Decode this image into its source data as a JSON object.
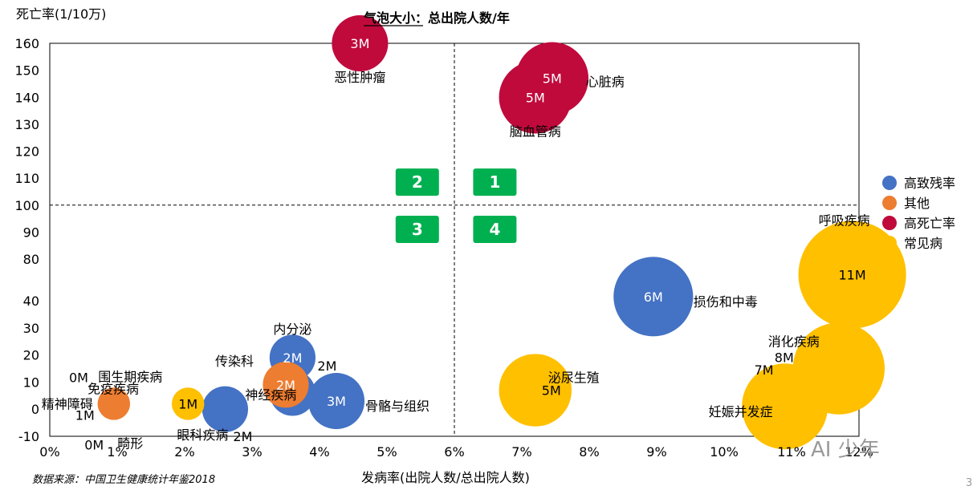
{
  "chart_data": {
    "type": "bubble",
    "title": "气泡大小：总出院人数/年",
    "ylabel": "死亡率(1/10万)",
    "xlabel": "发病率(出院人数/总出院人数)",
    "x_ticks": [
      "0%",
      "1%",
      "2%",
      "3%",
      "4%",
      "5%",
      "6%",
      "7%",
      "8%",
      "9%",
      "10%",
      "11%",
      "12%"
    ],
    "y_ticks": [
      "-10",
      "0",
      "10",
      "20",
      "30",
      "40",
      "80",
      "90",
      "100",
      "110",
      "120",
      "130",
      "140",
      "150",
      "160"
    ],
    "xlim": [
      0,
      12
    ],
    "ylim": [
      -10,
      160
    ],
    "y_axis_break": [
      40,
      80
    ],
    "divider_x": 6,
    "divider_y": 100,
    "legend_position": "right",
    "groups": [
      {
        "name": "高致残率",
        "color": "#4472C4"
      },
      {
        "name": "其他",
        "color": "#ED7D31"
      },
      {
        "name": "高死亡率",
        "color": "#C00A3C"
      },
      {
        "name": "常见病",
        "color": "#FFC000"
      }
    ],
    "bubbles": [
      {
        "name": "恶性肿瘤",
        "x": 4.6,
        "y": 160,
        "size": 3,
        "size_label": "3M",
        "group": "高死亡率"
      },
      {
        "name": "心脏病",
        "x": 7.45,
        "y": 147,
        "size": 5,
        "size_label": "5M",
        "group": "高死亡率"
      },
      {
        "name": "脑血管病",
        "x": 7.2,
        "y": 140,
        "size": 5,
        "size_label": "5M",
        "group": "高死亡率"
      },
      {
        "name": "损伤和中毒",
        "x": 8.95,
        "y": 44,
        "size": 6,
        "size_label": "6M",
        "group": "高致残率"
      },
      {
        "name": "呼吸疾病",
        "x": 11.9,
        "y": 65,
        "size": 11,
        "size_label": "11M",
        "group": "常见病"
      },
      {
        "name": "消化疾病",
        "x": 11.7,
        "y": 15,
        "size": 8,
        "size_label": "8M",
        "group": "常见病"
      },
      {
        "name": "妊娠并发症",
        "x": 10.9,
        "y": 1,
        "size": 7,
        "size_label": "7M",
        "group": "常见病"
      },
      {
        "name": "泌尿生殖",
        "x": 7.2,
        "y": 7,
        "size": 5,
        "size_label": "5M",
        "group": "常见病"
      },
      {
        "name": "内分泌",
        "x": 3.6,
        "y": 19,
        "size": 2,
        "size_label": "2M",
        "group": "高致残率"
      },
      {
        "name": "神经疾病",
        "x": 3.6,
        "y": 6,
        "size": 2,
        "size_label": "2M",
        "group": "高致残率"
      },
      {
        "name": "骨骼与组织",
        "x": 4.25,
        "y": 3,
        "size": 3,
        "size_label": "3M",
        "group": "高致残率"
      },
      {
        "name": "传染科",
        "x": 3.5,
        "y": 9,
        "size": 2,
        "size_label": "2M",
        "group": "其他"
      },
      {
        "name": "眼科疾病",
        "x": 2.6,
        "y": 0,
        "size": 2,
        "size_label": "2M",
        "group": "高致残率"
      },
      {
        "name": "围生期疾病",
        "x": 2.05,
        "y": 2,
        "size": 1,
        "size_label": "1M",
        "group": "常见病"
      },
      {
        "name": "免疫疾病",
        "x": 1.0,
        "y": 4,
        "size": 0,
        "size_label": "0M",
        "group": "其他"
      },
      {
        "name": "精神障碍",
        "x": 0.95,
        "y": 2,
        "size": 1,
        "size_label": "1M",
        "group": "其他"
      },
      {
        "name": "畸形",
        "x": 1.05,
        "y": -3,
        "size": 0,
        "size_label": "0M",
        "group": "其他"
      }
    ],
    "quadrants": [
      {
        "label": "1",
        "x": 6.6,
        "y": 108.5
      },
      {
        "label": "2",
        "x": 5.45,
        "y": 108.5
      },
      {
        "label": "3",
        "x": 5.45,
        "y": 91
      },
      {
        "label": "4",
        "x": 6.6,
        "y": 91
      }
    ]
  },
  "source_text": "数据来源：中国卫生健康统计年鉴2018",
  "watermark": "AI 少年",
  "page_number": "3"
}
